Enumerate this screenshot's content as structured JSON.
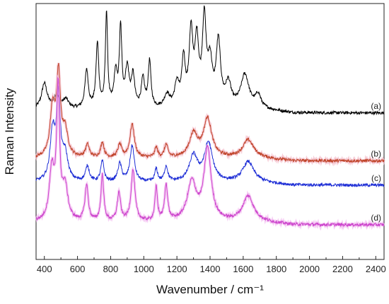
{
  "chart_data": {
    "type": "line",
    "title": "",
    "xlabel": "Wavenumber / cm⁻¹",
    "ylabel": "Raman Intensity",
    "xlim": [
      350,
      2450
    ],
    "ylim": [
      0,
      10
    ],
    "x_ticks": [
      400,
      600,
      800,
      1000,
      1200,
      1400,
      1600,
      1800,
      2000,
      2200,
      2400
    ],
    "grid": false,
    "series": [
      {
        "name": "(a)",
        "color": "#000000",
        "baseline": 5.85,
        "tail": 5.72,
        "peaks": [
          [
            400,
            1.0,
            20
          ],
          [
            475,
            0.5,
            20
          ],
          [
            530,
            0.35,
            20
          ],
          [
            655,
            1.5,
            12
          ],
          [
            720,
            2.5,
            10
          ],
          [
            775,
            3.7,
            8
          ],
          [
            830,
            1.3,
            12
          ],
          [
            860,
            3.0,
            9
          ],
          [
            900,
            1.5,
            14
          ],
          [
            935,
            1.2,
            12
          ],
          [
            995,
            1.1,
            12
          ],
          [
            1035,
            1.8,
            10
          ],
          [
            1140,
            0.5,
            20
          ],
          [
            1200,
            0.9,
            16
          ],
          [
            1240,
            1.8,
            12
          ],
          [
            1285,
            2.8,
            14
          ],
          [
            1320,
            2.4,
            14
          ],
          [
            1365,
            3.3,
            14
          ],
          [
            1400,
            1.6,
            16
          ],
          [
            1450,
            2.5,
            16
          ],
          [
            1510,
            0.9,
            20
          ],
          [
            1610,
            1.3,
            30
          ],
          [
            1690,
            0.5,
            20
          ]
        ]
      },
      {
        "name": "(b)",
        "color": "#c0452a",
        "baseline": 3.95,
        "tail": 3.85,
        "peaks": [
          [
            450,
            1.9,
            18
          ],
          [
            485,
            3.1,
            14
          ],
          [
            525,
            1.0,
            20
          ],
          [
            660,
            0.5,
            14
          ],
          [
            750,
            0.6,
            12
          ],
          [
            855,
            0.5,
            14
          ],
          [
            930,
            1.3,
            16
          ],
          [
            1075,
            0.4,
            10
          ],
          [
            1135,
            0.5,
            12
          ],
          [
            1300,
            0.9,
            30
          ],
          [
            1385,
            1.5,
            30
          ],
          [
            1630,
            0.7,
            40
          ]
        ]
      },
      {
        "name": "(c)",
        "color": "#1f2fd6",
        "baseline": 3.0,
        "tail": 2.9,
        "peaks": [
          [
            450,
            1.9,
            18
          ],
          [
            485,
            3.2,
            14
          ],
          [
            525,
            1.0,
            20
          ],
          [
            660,
            0.6,
            14
          ],
          [
            750,
            0.8,
            12
          ],
          [
            855,
            0.7,
            14
          ],
          [
            930,
            1.4,
            16
          ],
          [
            1075,
            0.5,
            10
          ],
          [
            1135,
            0.6,
            12
          ],
          [
            1300,
            1.0,
            30
          ],
          [
            1390,
            1.5,
            30
          ],
          [
            1630,
            0.8,
            40
          ]
        ]
      },
      {
        "name": "(d)",
        "color": "#cc44cc",
        "baseline": 1.45,
        "tail": 1.35,
        "peaks": [
          [
            445,
            2.0,
            18
          ],
          [
            483,
            5.0,
            11
          ],
          [
            525,
            1.3,
            20
          ],
          [
            655,
            1.4,
            12
          ],
          [
            750,
            1.8,
            10
          ],
          [
            850,
            1.1,
            12
          ],
          [
            935,
            2.0,
            14
          ],
          [
            1075,
            1.3,
            9
          ],
          [
            1135,
            1.4,
            11
          ],
          [
            1290,
            1.5,
            32
          ],
          [
            1385,
            2.8,
            26
          ],
          [
            1630,
            1.0,
            40
          ]
        ]
      }
    ]
  }
}
